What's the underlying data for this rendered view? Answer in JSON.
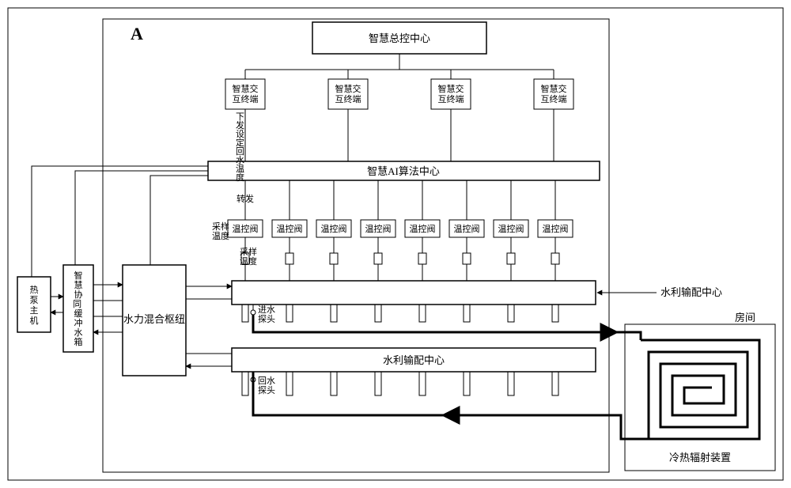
{
  "region_label": "A",
  "control_center": "智慧总控中心",
  "terminal_label": "智慧交互终端",
  "ai_center": "智慧AI算法中心",
  "send_return_temp": "下发设定回水温度",
  "forward": "转发",
  "sample_temp": "采样温度",
  "temp_valve": "温控阀",
  "inlet_probe": "进水探头",
  "return_probe": "回水探头",
  "distribution_center": "水利输配中心",
  "dist_label_right": "水利输配中心",
  "heat_pump": "热泵主机",
  "buffer_tank": "智慧协同缓冲水箱",
  "mixing_hub": "水力混合枢纽",
  "room": "房间",
  "radiant": "冷热辐射装置",
  "colors": {
    "stroke": "#000000",
    "bg": "#ffffff",
    "thin": 1,
    "med": 1.5,
    "thick": 3
  },
  "fonts": {
    "region_label_size": 22,
    "box_size": 13,
    "small_size": 11
  },
  "valve_count": 8
}
